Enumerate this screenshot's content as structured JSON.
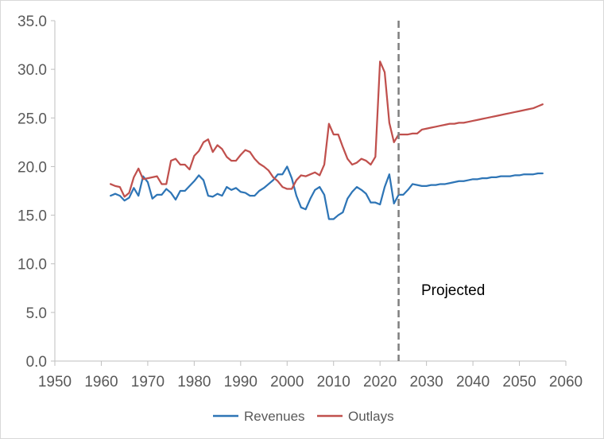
{
  "chart_data": {
    "type": "line",
    "title": "",
    "xlabel": "",
    "ylabel": "",
    "xlim": [
      1950,
      2060
    ],
    "ylim": [
      0,
      35
    ],
    "x_ticks": [
      1950,
      1960,
      1970,
      1980,
      1990,
      2000,
      2010,
      2020,
      2030,
      2040,
      2050,
      2060
    ],
    "x_tick_labels": [
      "1950",
      "1960",
      "1970",
      "1980",
      "1990",
      "2000",
      "2010",
      "2020",
      "2030",
      "2040",
      "2050",
      "2060"
    ],
    "y_ticks": [
      0,
      5,
      10,
      15,
      20,
      25,
      30,
      35
    ],
    "y_tick_labels": [
      "0.0",
      "5.0",
      "10.0",
      "15.0",
      "20.0",
      "25.0",
      "30.0",
      "35.0"
    ],
    "grid": false,
    "legend_position": "bottom",
    "projection_line_x": 2024,
    "annotation": "Projected",
    "x": [
      1962,
      1963,
      1964,
      1965,
      1966,
      1967,
      1968,
      1969,
      1970,
      1971,
      1972,
      1973,
      1974,
      1975,
      1976,
      1977,
      1978,
      1979,
      1980,
      1981,
      1982,
      1983,
      1984,
      1985,
      1986,
      1987,
      1988,
      1989,
      1990,
      1991,
      1992,
      1993,
      1994,
      1995,
      1996,
      1997,
      1998,
      1999,
      2000,
      2001,
      2002,
      2003,
      2004,
      2005,
      2006,
      2007,
      2008,
      2009,
      2010,
      2011,
      2012,
      2013,
      2014,
      2015,
      2016,
      2017,
      2018,
      2019,
      2020,
      2021,
      2022,
      2023,
      2024,
      2025,
      2026,
      2027,
      2028,
      2029,
      2030,
      2031,
      2032,
      2033,
      2034,
      2035,
      2036,
      2037,
      2038,
      2039,
      2040,
      2041,
      2042,
      2043,
      2044,
      2045,
      2046,
      2047,
      2048,
      2049,
      2050,
      2051,
      2052,
      2053,
      2054,
      2055
    ],
    "series": [
      {
        "name": "Revenues",
        "color": "#2E75B6",
        "values": [
          17.0,
          17.2,
          17.0,
          16.5,
          16.8,
          17.8,
          17.0,
          19.0,
          18.4,
          16.7,
          17.1,
          17.1,
          17.7,
          17.3,
          16.6,
          17.5,
          17.5,
          18.0,
          18.5,
          19.1,
          18.6,
          17.0,
          16.9,
          17.2,
          17.0,
          17.9,
          17.6,
          17.8,
          17.4,
          17.3,
          17.0,
          17.0,
          17.5,
          17.8,
          18.2,
          18.6,
          19.2,
          19.2,
          20.0,
          18.8,
          17.0,
          15.8,
          15.6,
          16.7,
          17.6,
          17.9,
          17.1,
          14.6,
          14.6,
          15.0,
          15.3,
          16.7,
          17.4,
          17.9,
          17.6,
          17.2,
          16.3,
          16.3,
          16.1,
          17.9,
          19.2,
          16.2,
          17.1,
          17.1,
          17.6,
          18.2,
          18.1,
          18.0,
          18.0,
          18.1,
          18.1,
          18.2,
          18.2,
          18.3,
          18.4,
          18.5,
          18.5,
          18.6,
          18.7,
          18.7,
          18.8,
          18.8,
          18.9,
          18.9,
          19.0,
          19.0,
          19.0,
          19.1,
          19.1,
          19.2,
          19.2,
          19.2,
          19.3,
          19.3
        ]
      },
      {
        "name": "Outlays",
        "color": "#C0504D",
        "values": [
          18.2,
          18.0,
          17.9,
          16.9,
          17.3,
          18.9,
          19.8,
          18.7,
          18.8,
          18.9,
          19.0,
          18.2,
          18.2,
          20.6,
          20.8,
          20.2,
          20.2,
          19.7,
          21.1,
          21.6,
          22.5,
          22.8,
          21.5,
          22.2,
          21.8,
          21.0,
          20.6,
          20.6,
          21.2,
          21.7,
          21.5,
          20.8,
          20.3,
          20.0,
          19.6,
          18.9,
          18.5,
          17.9,
          17.7,
          17.7,
          18.6,
          19.1,
          19.0,
          19.2,
          19.4,
          19.1,
          20.2,
          24.4,
          23.3,
          23.3,
          22.0,
          20.8,
          20.2,
          20.4,
          20.8,
          20.6,
          20.2,
          21.0,
          30.8,
          29.7,
          24.5,
          22.5,
          23.3,
          23.3,
          23.3,
          23.4,
          23.4,
          23.8,
          23.9,
          24.0,
          24.1,
          24.2,
          24.3,
          24.4,
          24.4,
          24.5,
          24.5,
          24.6,
          24.7,
          24.8,
          24.9,
          25.0,
          25.1,
          25.2,
          25.3,
          25.4,
          25.5,
          25.6,
          25.7,
          25.8,
          25.9,
          26.0,
          26.2,
          26.4
        ]
      }
    ]
  }
}
